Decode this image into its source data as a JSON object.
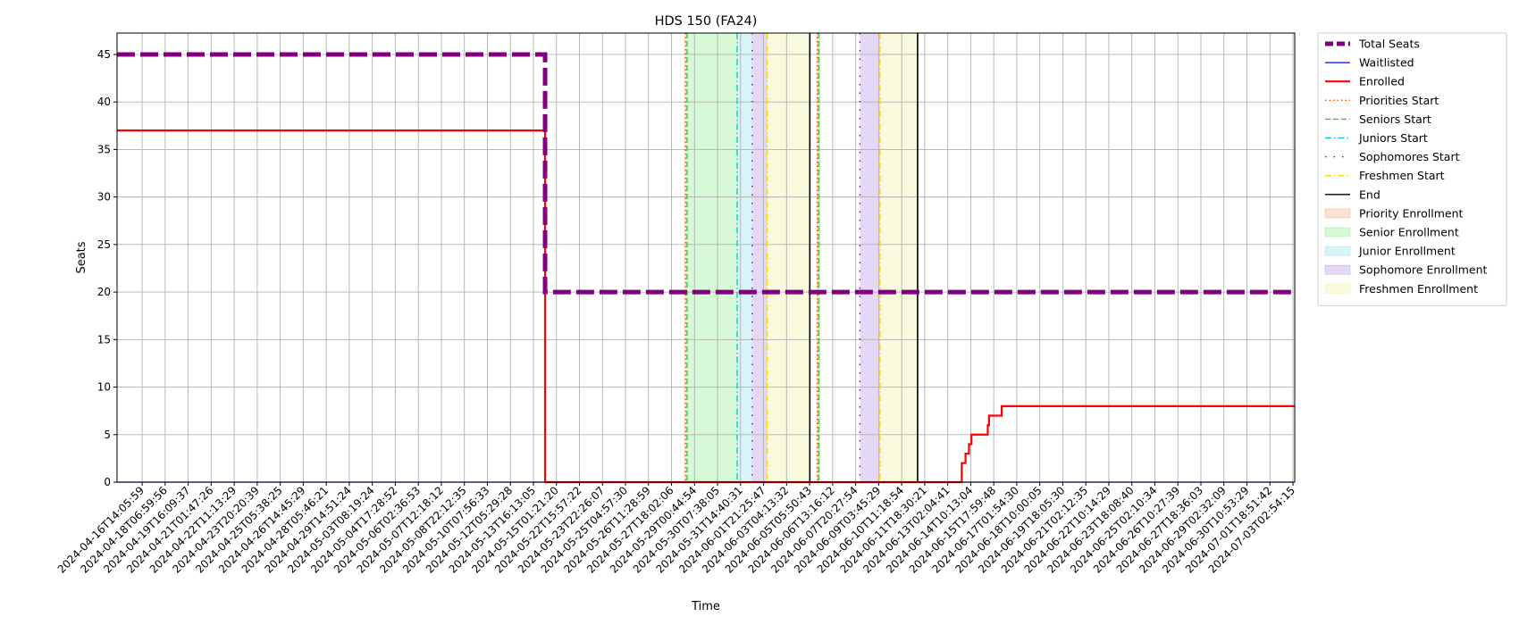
{
  "chart_data": {
    "type": "line",
    "title": "HDS 150 (FA24)",
    "xlabel": "Time",
    "ylabel": "Seats",
    "xlim": [
      "2024-04-16T14:05:59",
      "2024-07-03T22:00:00"
    ],
    "ylim": [
      0,
      47.25
    ],
    "yticks": [
      0,
      5,
      10,
      15,
      20,
      25,
      30,
      35,
      40,
      45
    ],
    "grid": true,
    "legend_position": "outside-top-right",
    "x_tick_labels": [
      "2024-04-16T14:05:59",
      "2024-04-18T06:59:56",
      "2024-04-19T16:09:37",
      "2024-04-21T01:47:26",
      "2024-04-22T11:13:29",
      "2024-04-23T20:20:39",
      "2024-04-25T05:38:25",
      "2024-04-26T14:45:29",
      "2024-04-28T05:46:21",
      "2024-04-29T14:51:24",
      "2024-05-03T08:19:24",
      "2024-05-04T17:28:52",
      "2024-05-06T02:36:53",
      "2024-05-07T12:18:12",
      "2024-05-08T22:12:35",
      "2024-05-10T07:56:33",
      "2024-05-12T05:29:28",
      "2024-05-13T16:13:05",
      "2024-05-15T01:21:20",
      "2024-05-22T15:57:22",
      "2024-05-23T22:26:07",
      "2024-05-25T04:57:30",
      "2024-05-26T11:28:59",
      "2024-05-27T18:02:06",
      "2024-05-29T00:44:54",
      "2024-05-30T07:38:05",
      "2024-05-31T14:40:31",
      "2024-06-01T21:25:47",
      "2024-06-03T04:13:32",
      "2024-06-05T05:50:43",
      "2024-06-06T13:16:12",
      "2024-06-07T20:27:54",
      "2024-06-09T03:45:29",
      "2024-06-10T11:18:54",
      "2024-06-11T18:30:21",
      "2024-06-13T02:04:41",
      "2024-06-14T10:13:04",
      "2024-06-15T17:59:48",
      "2024-06-17T01:54:30",
      "2024-06-18T10:00:05",
      "2024-06-19T18:05:30",
      "2024-06-21T02:12:35",
      "2024-06-22T10:14:29",
      "2024-06-23T18:08:40",
      "2024-06-25T02:10:34",
      "2024-06-26T10:27:39",
      "2024-06-27T18:36:03",
      "2024-06-29T02:32:09",
      "2024-06-30T10:53:29",
      "2024-07-01T18:51:42",
      "2024-07-03T02:54:15"
    ],
    "series": [
      {
        "name": "Total Seats",
        "color": "#800080",
        "style": "dashed-thick",
        "step": true,
        "points": [
          [
            "2024-04-16T14:05:59",
            45
          ],
          [
            "2024-05-15T01:21:20",
            45
          ],
          [
            "2024-05-15T01:21:20",
            20
          ],
          [
            "2024-07-03T22:00:00",
            20
          ]
        ]
      },
      {
        "name": "Waitlisted",
        "color": "#0000ff",
        "style": "solid",
        "step": true,
        "points": [
          [
            "2024-04-16T14:05:59",
            0
          ],
          [
            "2024-07-03T22:00:00",
            0
          ]
        ]
      },
      {
        "name": "Enrolled",
        "color": "#ff0000",
        "style": "solid",
        "step": true,
        "points": [
          [
            "2024-04-16T14:05:59",
            37
          ],
          [
            "2024-05-15T01:21:20",
            37
          ],
          [
            "2024-05-15T01:21:20",
            0
          ],
          [
            "2024-06-11T18:30:21",
            0
          ],
          [
            "2024-06-11T18:30:21",
            2
          ],
          [
            "2024-06-12T00:30:00",
            2
          ],
          [
            "2024-06-12T00:30:00",
            3
          ],
          [
            "2024-06-12T06:00:00",
            3
          ],
          [
            "2024-06-12T06:00:00",
            4
          ],
          [
            "2024-06-12T10:00:00",
            4
          ],
          [
            "2024-06-12T10:00:00",
            5
          ],
          [
            "2024-06-13T12:00:00",
            5
          ],
          [
            "2024-06-13T12:00:00",
            6
          ],
          [
            "2024-06-13T14:00:00",
            6
          ],
          [
            "2024-06-13T14:00:00",
            7
          ],
          [
            "2024-06-14T10:13:04",
            7
          ],
          [
            "2024-06-14T10:13:04",
            8
          ],
          [
            "2024-07-03T22:00:00",
            8
          ]
        ]
      }
    ],
    "vlines": [
      {
        "name": "Priorities Start",
        "color": "#ff4500",
        "style": "dotted",
        "x": [
          "2024-05-24T09:20:00",
          "2024-06-02T04:00:00"
        ]
      },
      {
        "name": "Seniors Start",
        "color": "#32cd32",
        "style": "dashed",
        "x": [
          "2024-05-24T12:00:00",
          "2024-06-02T06:30:00"
        ]
      },
      {
        "name": "Juniors Start",
        "color": "#00ced1",
        "style": "dashdot",
        "x": [
          "2024-05-27T20:00:00"
        ]
      },
      {
        "name": "Sophomores Start",
        "color": "#6a0dad",
        "style": "loosely-dashdot",
        "x": [
          "2024-05-28T20:00:00",
          "2024-06-05T00:00:00"
        ]
      },
      {
        "name": "Freshmen Start",
        "color": "#ffd700",
        "style": "dashdot",
        "x": [
          "2024-05-29T20:00:00",
          "2024-06-06T08:00:00"
        ]
      },
      {
        "name": "End",
        "color": "#000000",
        "style": "solid",
        "x": [
          "2024-06-01T16:00:00",
          "2024-06-08T20:00:00"
        ]
      }
    ],
    "bands": [
      {
        "name": "Priority Enrollment",
        "color": "#f4a582",
        "ranges": [
          [
            "2024-05-24T08:00:00",
            "2024-05-24T12:00:00"
          ],
          [
            "2024-06-02T03:00:00",
            "2024-06-02T06:30:00"
          ]
        ]
      },
      {
        "name": "Senior Enrollment",
        "color": "#90ee90",
        "ranges": [
          [
            "2024-05-24T12:00:00",
            "2024-05-27T20:00:00"
          ],
          [
            "2024-06-02T06:30:00",
            "2024-06-02T07:30:00"
          ]
        ]
      },
      {
        "name": "Junior Enrollment",
        "color": "#8ee0e8",
        "ranges": [
          [
            "2024-05-27T20:00:00",
            "2024-05-28T20:00:00"
          ]
        ]
      },
      {
        "name": "Sophomore Enrollment",
        "color": "#b48ee8",
        "ranges": [
          [
            "2024-05-28T20:00:00",
            "2024-05-29T20:00:00"
          ],
          [
            "2024-06-05T00:00:00",
            "2024-06-06T08:00:00"
          ]
        ]
      },
      {
        "name": "Freshmen Enrollment",
        "color": "#eeeea0",
        "ranges": [
          [
            "2024-05-29T20:00:00",
            "2024-06-01T16:00:00"
          ],
          [
            "2024-06-06T08:00:00",
            "2024-06-08T20:00:00"
          ]
        ]
      }
    ]
  }
}
